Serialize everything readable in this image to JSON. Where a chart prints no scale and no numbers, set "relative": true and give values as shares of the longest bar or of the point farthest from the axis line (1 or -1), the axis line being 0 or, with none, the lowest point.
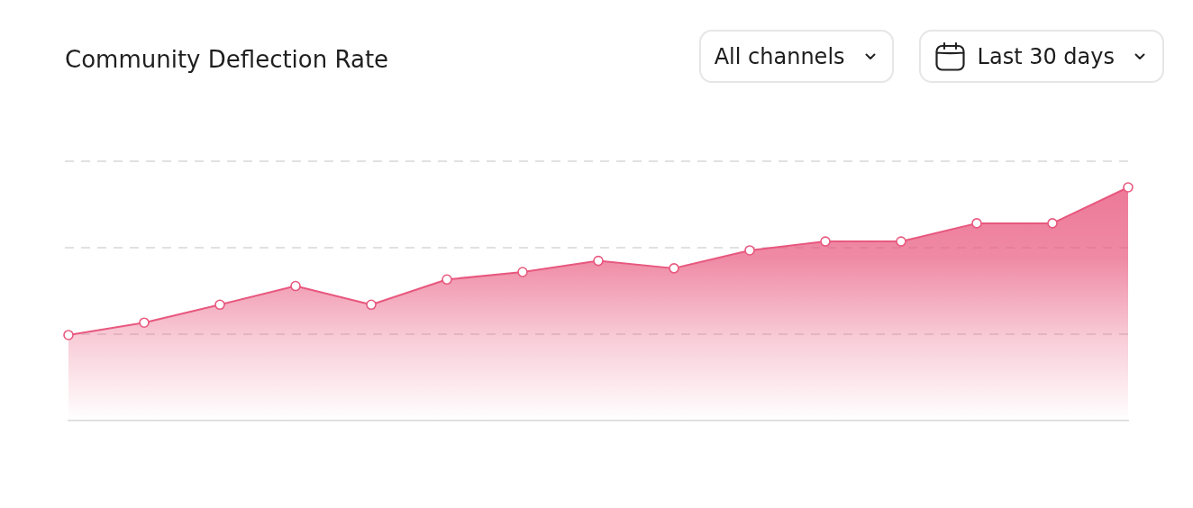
{
  "chart_data": {
    "type": "area",
    "title": "Community Deflection Rate",
    "annotations": [
      "All channels",
      "Last 30 days"
    ],
    "categories": [
      null,
      null,
      null,
      null,
      null,
      null,
      null,
      null,
      null,
      null,
      null,
      null,
      null,
      null,
      null
    ],
    "values": [
      0.367,
      0.42,
      0.497,
      0.577,
      0.497,
      0.605,
      0.637,
      0.685,
      0.653,
      0.73,
      0.768,
      0.768,
      0.846,
      0.846,
      1
    ],
    "color": "#e8587e",
    "relative": true,
    "ref_lines": [
      {
        "axis": "y",
        "value": 0.371,
        "color": "#d8d8d8",
        "line_style": "dashed"
      },
      {
        "axis": "y",
        "value": 0.741,
        "color": "#d8d8d8",
        "line_style": "dashed"
      },
      {
        "axis": "y",
        "value": 1.112,
        "color": "#d8d8d8",
        "line_style": "dashed"
      }
    ],
    "marker": "circle",
    "tick_labels": false
  }
}
